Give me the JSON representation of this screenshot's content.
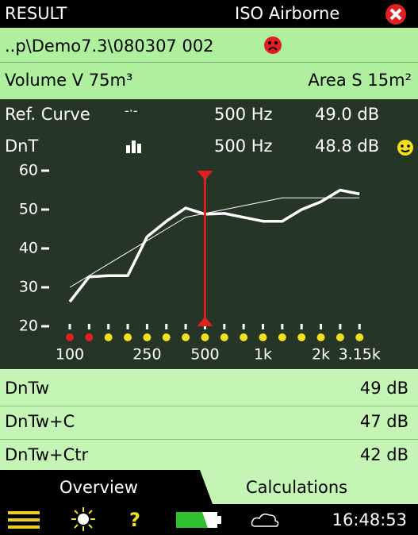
{
  "header": {
    "title": "RESULT",
    "mode": "ISO Airborne"
  },
  "file": {
    "path": "..p\\Demo7.3\\080307 002"
  },
  "room": {
    "volume": "Volume V 75m³",
    "area": "Area S 15m²"
  },
  "readout": [
    {
      "label": "Ref. Curve",
      "symbol": "-·-",
      "frequency": "500 Hz",
      "level": "49.0 dB"
    },
    {
      "label": "DnT",
      "frequency": "500 Hz",
      "level": "48.8 dB"
    }
  ],
  "chart": {
    "type": "line",
    "ylim": [
      20,
      60
    ],
    "yticks": [
      20,
      30,
      40,
      50,
      60
    ],
    "categories": [
      "100",
      null,
      null,
      null,
      "250",
      null,
      null,
      "500",
      null,
      null,
      "1k",
      null,
      null,
      "2k",
      null,
      "3.15k"
    ],
    "cursor_index": 7,
    "dot_colors": [
      "#e02020",
      "#e02020",
      "#f0e020",
      "#f0e020",
      "#f0e020",
      "#f0e020",
      "#f0e020",
      "#f0e020",
      "#f0e020",
      "#f0e020",
      "#f0e020",
      "#f0e020",
      "#f0e020",
      "#f0e020",
      "#f0e020",
      "#f0e020"
    ],
    "series": [
      {
        "name": "Ref. Curve",
        "color": "#ffffff",
        "width": 1,
        "values": [
          30,
          33,
          36,
          39,
          42,
          45,
          48,
          49,
          50,
          51,
          52,
          53,
          53,
          53,
          53,
          53
        ]
      },
      {
        "name": "DnT",
        "color": "#ffffff",
        "width": 3.5,
        "values": [
          26.3,
          32.7,
          33,
          33,
          43,
          47,
          50.4,
          48.8,
          49,
          48,
          47,
          47,
          50,
          52,
          55,
          54
        ]
      }
    ]
  },
  "results": [
    {
      "label": "DnTw",
      "value": "49 dB"
    },
    {
      "label": "DnTw+C",
      "value": "47 dB"
    },
    {
      "label": "DnTw+Ctr",
      "value": "42 dB"
    }
  ],
  "tabs": [
    "Overview",
    "Calculations"
  ],
  "status": {
    "time": "16:48:53"
  }
}
